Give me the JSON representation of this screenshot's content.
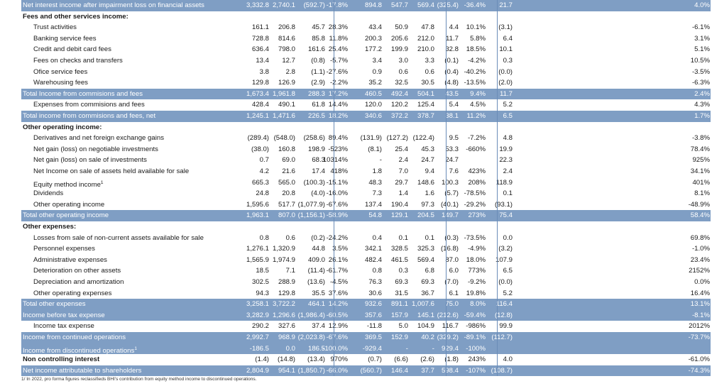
{
  "table": {
    "rows": [
      {
        "label": "Net interest income after impairment loss on financial assets",
        "values": [
          "3,332.8",
          "2,740.1",
          "(592.7)",
          "-17.8%",
          "894.8",
          "547.7",
          "569.4",
          "(325.4)",
          "-36.4%",
          "21.7",
          "4.0%"
        ],
        "style": "highlight"
      },
      {
        "label": "Fees and other services income:",
        "values": [],
        "style": "section"
      },
      {
        "label": "Trust activities",
        "values": [
          "161.1",
          "206.8",
          "45.7",
          "28.3%",
          "43.4",
          "50.9",
          "47.8",
          "4.4",
          "10.1%",
          "(3.1)",
          "-6.1%"
        ],
        "style": "indent"
      },
      {
        "label": "Banking service fees",
        "values": [
          "728.8",
          "814.6",
          "85.8",
          "11.8%",
          "200.3",
          "205.6",
          "212.0",
          "11.7",
          "5.8%",
          "6.4",
          "3.1%"
        ],
        "style": "indent"
      },
      {
        "label": "Credit and debit card fees",
        "values": [
          "636.4",
          "798.0",
          "161.6",
          "25.4%",
          "177.2",
          "199.9",
          "210.0",
          "32.8",
          "18.5%",
          "10.1",
          "5.1%"
        ],
        "style": "indent"
      },
      {
        "label": "Fees on checks and transfers",
        "values": [
          "13.4",
          "12.7",
          "(0.8)",
          "-5.7%",
          "3.4",
          "3.0",
          "3.3",
          "(0.1)",
          "-4.2%",
          "0.3",
          "10.5%"
        ],
        "style": "indent"
      },
      {
        "label": "Ofice service fees",
        "values": [
          "3.8",
          "2.8",
          "(1.1)",
          "-27.6%",
          "0.9",
          "0.6",
          "0.6",
          "(0.4)",
          "-40.2%",
          "(0.0)",
          "-3.5%"
        ],
        "style": "indent"
      },
      {
        "label": "Warehousing fees",
        "values": [
          "129.8",
          "126.9",
          "(2.9)",
          "-2.2%",
          "35.2",
          "32.5",
          "30.5",
          "(4.8)",
          "-13.5%",
          "(2.0)",
          "-6.3%"
        ],
        "style": "indent"
      },
      {
        "label": "Total Income from commisions and fees",
        "values": [
          "1,673.4",
          "1,961.8",
          "288.3",
          "17.2%",
          "460.5",
          "492.4",
          "504.1",
          "43.5",
          "9.4%",
          "11.7",
          "2.4%"
        ],
        "style": "highlight"
      },
      {
        "label": "Expenses from commisions and fees",
        "values": [
          "428.4",
          "490.1",
          "61.8",
          "14.4%",
          "120.0",
          "120.2",
          "125.4",
          "5.4",
          "4.5%",
          "5.2",
          "4.3%"
        ],
        "style": "indent"
      },
      {
        "label": "Total income from commisions and fees, net",
        "values": [
          "1,245.1",
          "1,471.6",
          "226.5",
          "18.2%",
          "340.6",
          "372.2",
          "378.7",
          "38.1",
          "11.2%",
          "6.5",
          "1.7%"
        ],
        "style": "highlight"
      },
      {
        "label": "Other operating income:",
        "values": [],
        "style": "section"
      },
      {
        "label": "Derivatives and net foreign exchange gains",
        "values": [
          "(289.4)",
          "(548.0)",
          "(258.6)",
          "89.4%",
          "(131.9)",
          "(127.2)",
          "(122.4)",
          "9.5",
          "-7.2%",
          "4.8",
          "-3.8%"
        ],
        "style": "indent"
      },
      {
        "label": "Net gain (loss) on negotiable investments",
        "values": [
          "(38.0)",
          "160.8",
          "198.9",
          "-523%",
          "(8.1)",
          "25.4",
          "45.3",
          "53.3",
          "-660%",
          "19.9",
          "78.4%"
        ],
        "style": "indent"
      },
      {
        "label": "Net gain (loss) on sale of investments",
        "values": [
          "0.7",
          "69.0",
          "68.3",
          "10314%",
          "-",
          "2.4",
          "24.7",
          "24.7",
          "",
          "22.3",
          "925%"
        ],
        "style": "indent"
      },
      {
        "label": "Net Income on sale of assets held available for sale",
        "values": [
          "4.2",
          "21.6",
          "17.4",
          "418%",
          "1.8",
          "7.0",
          "9.4",
          "7.6",
          "423%",
          "2.4",
          "34.1%"
        ],
        "style": "indent"
      },
      {
        "label": "Equity method income",
        "flag": "1",
        "values": [
          "665.3",
          "565.0",
          "(100.3)",
          "-15.1%",
          "48.3",
          "29.7",
          "148.6",
          "100.3",
          "208%",
          "118.9",
          "401%"
        ],
        "style": "indent"
      },
      {
        "label": "Dividends",
        "values": [
          "24.8",
          "20.8",
          "(4.0)",
          "-16.0%",
          "7.3",
          "1.4",
          "1.6",
          "(5.7)",
          "-78.5%",
          "0.1",
          "8.1%"
        ],
        "style": "indent"
      },
      {
        "label": "Other operating income",
        "values": [
          "1,595.6",
          "517.7",
          "(1,077.9)",
          "-67.6%",
          "137.4",
          "190.4",
          "97.3",
          "(40.1)",
          "-29.2%",
          "(93.1)",
          "-48.9%"
        ],
        "style": "indent"
      },
      {
        "label": "Total other operating income",
        "values": [
          "1,963.1",
          "807.0",
          "(1,156.1)",
          "-58.9%",
          "54.8",
          "129.1",
          "204.5",
          "149.7",
          "273%",
          "75.4",
          "58.4%"
        ],
        "style": "highlight"
      },
      {
        "label": "Other expenses:",
        "values": [],
        "style": "section"
      },
      {
        "label": "Losses from sale of non-current assets available for sale",
        "values": [
          "0.8",
          "0.6",
          "(0.2)",
          "-24.2%",
          "0.4",
          "0.1",
          "0.1",
          "(0.3)",
          "-73.5%",
          "0.0",
          "69.8%"
        ],
        "style": "indent"
      },
      {
        "label": "Personnel expenses",
        "values": [
          "1,276.1",
          "1,320.9",
          "44.8",
          "3.5%",
          "342.1",
          "328.5",
          "325.3",
          "(16.8)",
          "-4.9%",
          "(3.2)",
          "-1.0%"
        ],
        "style": "indent"
      },
      {
        "label": "Administrative expenses",
        "values": [
          "1,565.9",
          "1,974.9",
          "409.0",
          "26.1%",
          "482.4",
          "461.5",
          "569.4",
          "87.0",
          "18.0%",
          "107.9",
          "23.4%"
        ],
        "style": "indent"
      },
      {
        "label": "Deterioration on other assets",
        "values": [
          "18.5",
          "7.1",
          "(11.4)",
          "-61.7%",
          "0.8",
          "0.3",
          "6.8",
          "6.0",
          "773%",
          "6.5",
          "2152%"
        ],
        "style": "indent"
      },
      {
        "label": "Depreciation and amortization",
        "values": [
          "302.5",
          "288.9",
          "(13.6)",
          "-4.5%",
          "76.3",
          "69.3",
          "69.3",
          "(7.0)",
          "-9.2%",
          "(0.0)",
          "0.0%"
        ],
        "style": "indent"
      },
      {
        "label": "Other operating expenses",
        "values": [
          "94.3",
          "129.8",
          "35.5",
          "37.6%",
          "30.6",
          "31.5",
          "36.7",
          "6.1",
          "19.8%",
          "5.2",
          "16.4%"
        ],
        "style": "indent"
      },
      {
        "label": "Total other expenses",
        "values": [
          "3,258.1",
          "3,722.2",
          "464.1",
          "14.2%",
          "932.6",
          "891.1",
          "1,007.6",
          "75.0",
          "8.0%",
          "116.4",
          "13.1%"
        ],
        "style": "highlight"
      },
      {
        "label": "Income before tax expense",
        "values": [
          "3,282.9",
          "1,296.6",
          "(1,986.4)",
          "-60.5%",
          "357.6",
          "157.9",
          "145.1",
          "(212.6)",
          "-59.4%",
          "(12.8)",
          "-8.1%"
        ],
        "style": "highlight"
      },
      {
        "label": "Income tax expense",
        "values": [
          "290.2",
          "327.6",
          "37.4",
          "12.9%",
          "-11.8",
          "5.0",
          "104.9",
          "116.7",
          "-986%",
          "99.9",
          "2012%"
        ],
        "style": "indent"
      },
      {
        "label": "Income from continued operations",
        "values": [
          "2,992.7",
          "968.9",
          "(2,023.8)",
          "-67.6%",
          "369.5",
          "152.9",
          "40.2",
          "(329.2)",
          "-89.1%",
          "(112.7)",
          "-73.7%"
        ],
        "style": "highlight"
      },
      {
        "label": "Income from discontinued operations",
        "flag": "1",
        "values": [
          "-186.5",
          "0.0",
          "186.5",
          "-100.0%",
          "-929.4",
          "-",
          "-",
          "929.4",
          "-100%",
          "",
          ""
        ],
        "style": "highlight"
      },
      {
        "label": "Non controlling interest",
        "values": [
          "(1.4)",
          "(14.8)",
          "(13.4)",
          "970%",
          "(0.7)",
          "(6.6)",
          "(2.6)",
          "(1.8)",
          "243%",
          "4.0",
          "-61.0%"
        ],
        "style": "section"
      },
      {
        "label": "Net income attributable to shareholders",
        "values": [
          "2,804.9",
          "954.1",
          "(1,850.7)",
          "-66.0%",
          "(560.7)",
          "146.4",
          "37.7",
          "598.4",
          "-107%",
          "(108.7)",
          "-74.3%"
        ],
        "style": "highlight"
      }
    ],
    "footnote": "1/ In 2022, pro forma figures reclassifieds BHI's contribution from equity method income to discontinued operations."
  }
}
